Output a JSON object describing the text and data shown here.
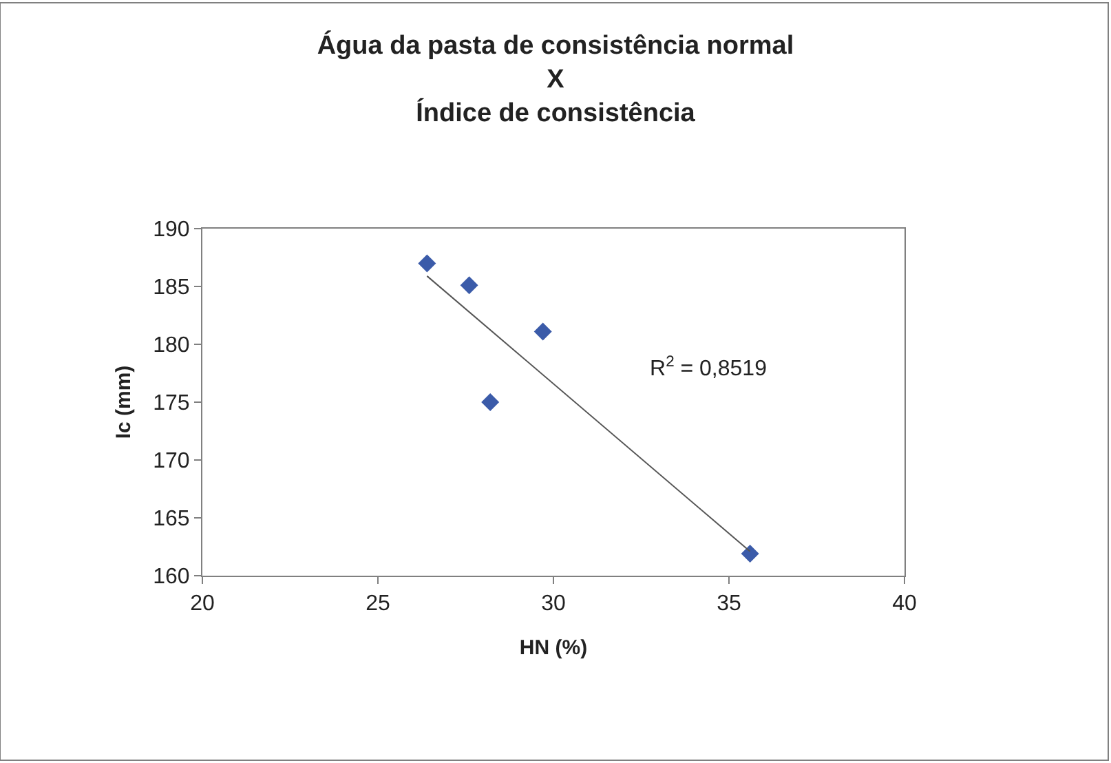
{
  "chart_data": {
    "type": "scatter",
    "title": "Água da pasta de consistência normal\nX\nÍndice de consistência",
    "xlabel": "HN (%)",
    "ylabel": "Ic (mm)",
    "xlim": [
      20,
      40
    ],
    "xticks": [
      20,
      25,
      30,
      35,
      40
    ],
    "ylim": [
      160,
      190
    ],
    "yticks": [
      160,
      165,
      170,
      175,
      180,
      185,
      190
    ],
    "series": [
      {
        "color": "#3b5ba9",
        "marker": "diamond",
        "x": [
          26.4,
          27.6,
          29.7,
          28.2,
          35.6
        ],
        "values": [
          187,
          185.1,
          181.1,
          175,
          161.9
        ]
      },
      {
        "type": "line",
        "color": "#555555",
        "marker": "none",
        "line_style": "solid",
        "x": [
          26.4,
          35.6
        ],
        "values": [
          185.9,
          162.1
        ]
      }
    ],
    "annotations": [
      "R$^{2}$ = 0,8519"
    ]
  }
}
